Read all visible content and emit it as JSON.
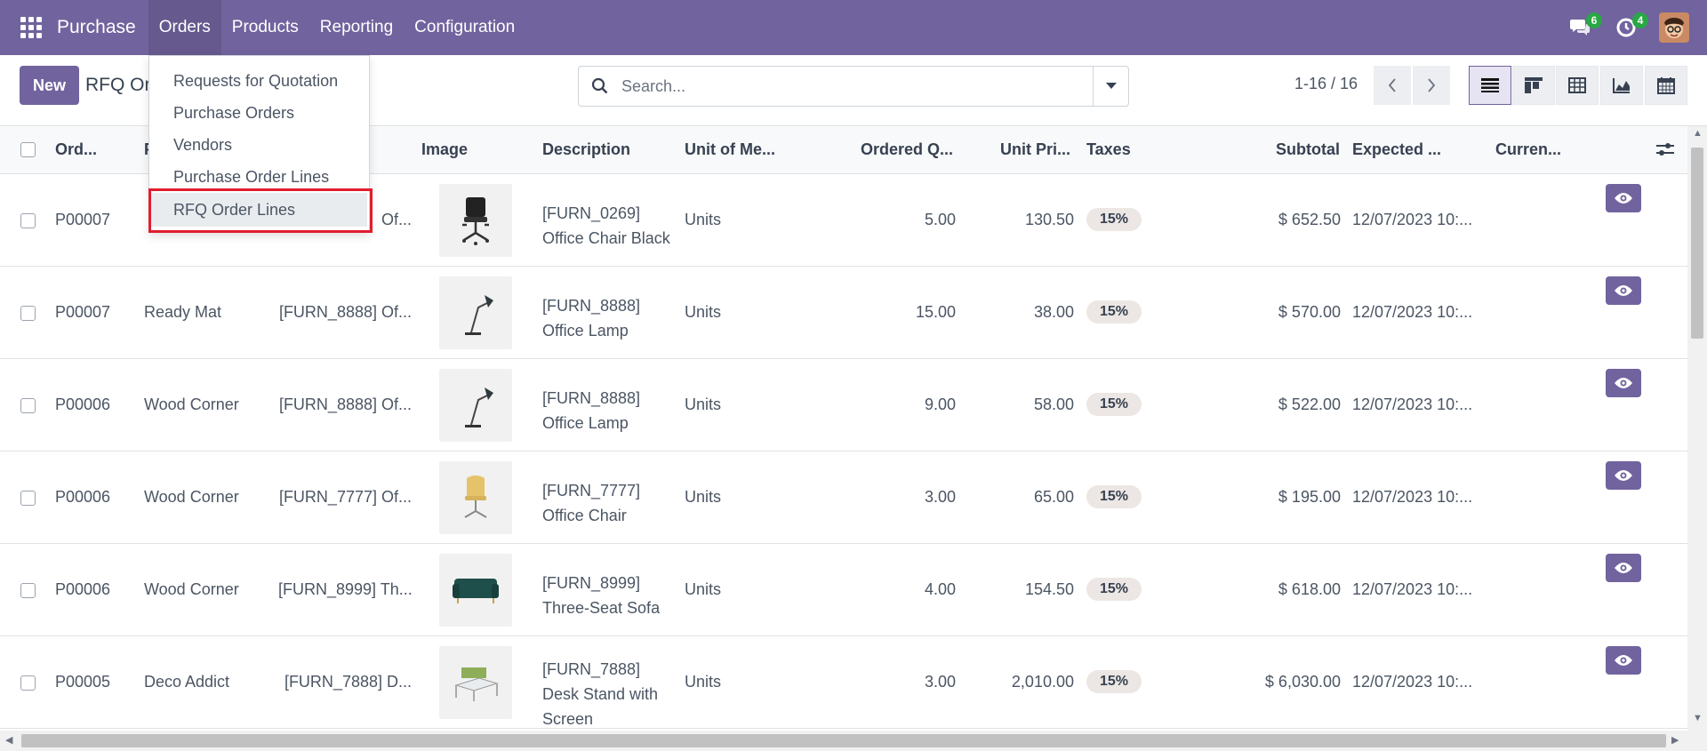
{
  "navbar": {
    "brand": "Purchase",
    "menus": [
      "Orders",
      "Products",
      "Reporting",
      "Configuration"
    ],
    "messages_count": "6",
    "activities_count": "4"
  },
  "control_panel": {
    "new_label": "New",
    "breadcrumb": "RFQ Order Lines",
    "search_placeholder": "Search...",
    "pager": "1-16 / 16"
  },
  "orders_menu": {
    "items": [
      "Requests for Quotation",
      "Purchase Orders",
      "Vendors",
      "Purchase Order Lines",
      "RFQ Order Lines"
    ]
  },
  "table": {
    "headers": {
      "order": "Ord...",
      "partner": "P",
      "image": "Image",
      "description": "Description",
      "uom": "Unit of Me...",
      "qty": "Ordered Q...",
      "price": "Unit Pri...",
      "taxes": "Taxes",
      "subtotal": "Subtotal",
      "expected": "Expected ...",
      "currency": "Curren..."
    },
    "rows": [
      {
        "order": "P00007",
        "partner": "",
        "product": "Of...",
        "desc1": "[FURN_0269]",
        "desc2": "Office Chair Black",
        "desc3": "",
        "uom": "Units",
        "qty": "5.00",
        "price": "130.50",
        "tax": "15%",
        "subtotal": "$ 652.50",
        "date": "12/07/2023 10:..."
      },
      {
        "order": "P00007",
        "partner": "Ready Mat",
        "product": "[FURN_8888] Of...",
        "desc1": "[FURN_8888]",
        "desc2": "Office Lamp",
        "desc3": "",
        "uom": "Units",
        "qty": "15.00",
        "price": "38.00",
        "tax": "15%",
        "subtotal": "$ 570.00",
        "date": "12/07/2023 10:..."
      },
      {
        "order": "P00006",
        "partner": "Wood Corner",
        "product": "[FURN_8888] Of...",
        "desc1": "[FURN_8888]",
        "desc2": "Office Lamp",
        "desc3": "",
        "uom": "Units",
        "qty": "9.00",
        "price": "58.00",
        "tax": "15%",
        "subtotal": "$ 522.00",
        "date": "12/07/2023 10:..."
      },
      {
        "order": "P00006",
        "partner": "Wood Corner",
        "product": "[FURN_7777] Of...",
        "desc1": "[FURN_7777]",
        "desc2": "Office Chair",
        "desc3": "",
        "uom": "Units",
        "qty": "3.00",
        "price": "65.00",
        "tax": "15%",
        "subtotal": "$ 195.00",
        "date": "12/07/2023 10:..."
      },
      {
        "order": "P00006",
        "partner": "Wood Corner",
        "product": "[FURN_8999] Th...",
        "desc1": "[FURN_8999]",
        "desc2": "Three-Seat Sofa",
        "desc3": "",
        "uom": "Units",
        "qty": "4.00",
        "price": "154.50",
        "tax": "15%",
        "subtotal": "$ 618.00",
        "date": "12/07/2023 10:..."
      },
      {
        "order": "P00005",
        "partner": "Deco Addict",
        "product": "[FURN_7888] D...",
        "desc1": "[FURN_7888]",
        "desc2": "Desk Stand with",
        "desc3": "Screen",
        "uom": "Units",
        "qty": "3.00",
        "price": "2,010.00",
        "tax": "15%",
        "subtotal": "$ 6,030.00",
        "date": "12/07/2023 10:..."
      }
    ]
  },
  "colors": {
    "brand": "#71639e",
    "highlight_border": "#e11d2e",
    "badge": "#28a745"
  }
}
